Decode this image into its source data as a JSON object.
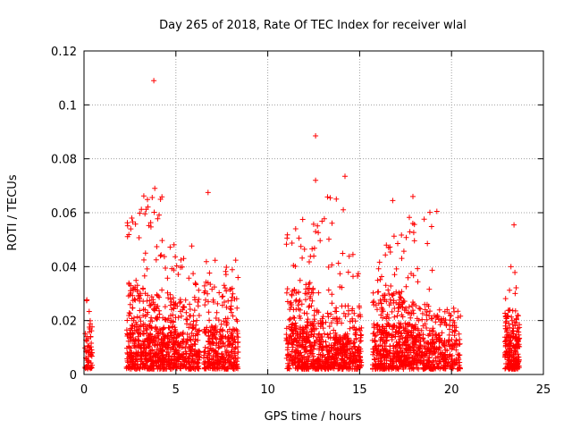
{
  "chart_data": {
    "type": "scatter",
    "title": "Day 265 of 2018, Rate Of TEC Index for receiver wlal",
    "xlabel": "GPS time / hours",
    "ylabel": "ROTI / TECUs",
    "xlim": [
      0,
      25
    ],
    "ylim": [
      0,
      0.12
    ],
    "xticks": [
      0,
      5,
      10,
      15,
      20,
      25
    ],
    "xtick_labels": [
      "0",
      "5",
      "10",
      "15",
      "20",
      "25"
    ],
    "yticks": [
      0,
      0.02,
      0.04,
      0.06,
      0.08,
      0.1,
      0.12
    ],
    "ytick_labels": [
      "0",
      "0.02",
      "0.04",
      "0.06",
      "0.08",
      "0.1",
      "0.12"
    ],
    "grid": true,
    "marker": "+",
    "color": "#ff0000",
    "series": [
      {
        "name": "ROTI",
        "clusters": [
          {
            "x_start": 0.05,
            "x_end": 0.45,
            "count": 60,
            "typical_max": 0.022,
            "peak": 0.034
          },
          {
            "x_start": 2.3,
            "x_end": 3.0,
            "count": 160,
            "typical_max": 0.032,
            "peak": 0.058
          },
          {
            "x_start": 3.0,
            "x_end": 4.7,
            "count": 380,
            "typical_max": 0.03,
            "peak": 0.069
          },
          {
            "x_start": 4.7,
            "x_end": 6.3,
            "count": 320,
            "typical_max": 0.026,
            "peak": 0.049
          },
          {
            "x_start": 6.5,
            "x_end": 8.4,
            "count": 330,
            "typical_max": 0.03,
            "peak": 0.043
          },
          {
            "x_start": 11.0,
            "x_end": 12.5,
            "count": 330,
            "typical_max": 0.03,
            "peak": 0.058
          },
          {
            "x_start": 12.5,
            "x_end": 14.2,
            "count": 330,
            "typical_max": 0.022,
            "peak": 0.066
          },
          {
            "x_start": 14.2,
            "x_end": 15.1,
            "count": 160,
            "typical_max": 0.024,
            "peak": 0.048
          },
          {
            "x_start": 15.7,
            "x_end": 17.6,
            "count": 420,
            "typical_max": 0.03,
            "peak": 0.052
          },
          {
            "x_start": 17.6,
            "x_end": 19.3,
            "count": 320,
            "typical_max": 0.025,
            "peak": 0.061
          },
          {
            "x_start": 19.3,
            "x_end": 20.5,
            "count": 160,
            "typical_max": 0.02,
            "peak": 0.025
          },
          {
            "x_start": 22.9,
            "x_end": 23.7,
            "count": 220,
            "typical_max": 0.022,
            "peak": 0.046
          }
        ],
        "outliers": [
          {
            "x": 3.8,
            "y": 0.109
          },
          {
            "x": 3.85,
            "y": 0.069
          },
          {
            "x": 6.75,
            "y": 0.0675
          },
          {
            "x": 12.6,
            "y": 0.0885
          },
          {
            "x": 12.6,
            "y": 0.072
          },
          {
            "x": 14.2,
            "y": 0.0735
          },
          {
            "x": 13.4,
            "y": 0.0655
          },
          {
            "x": 16.8,
            "y": 0.0645
          },
          {
            "x": 17.9,
            "y": 0.066
          },
          {
            "x": 19.2,
            "y": 0.0605
          },
          {
            "x": 23.4,
            "y": 0.0555
          },
          {
            "x": 2.6,
            "y": 0.058
          },
          {
            "x": 11.9,
            "y": 0.0575
          },
          {
            "x": 12.6,
            "y": 0.053
          }
        ]
      }
    ]
  }
}
